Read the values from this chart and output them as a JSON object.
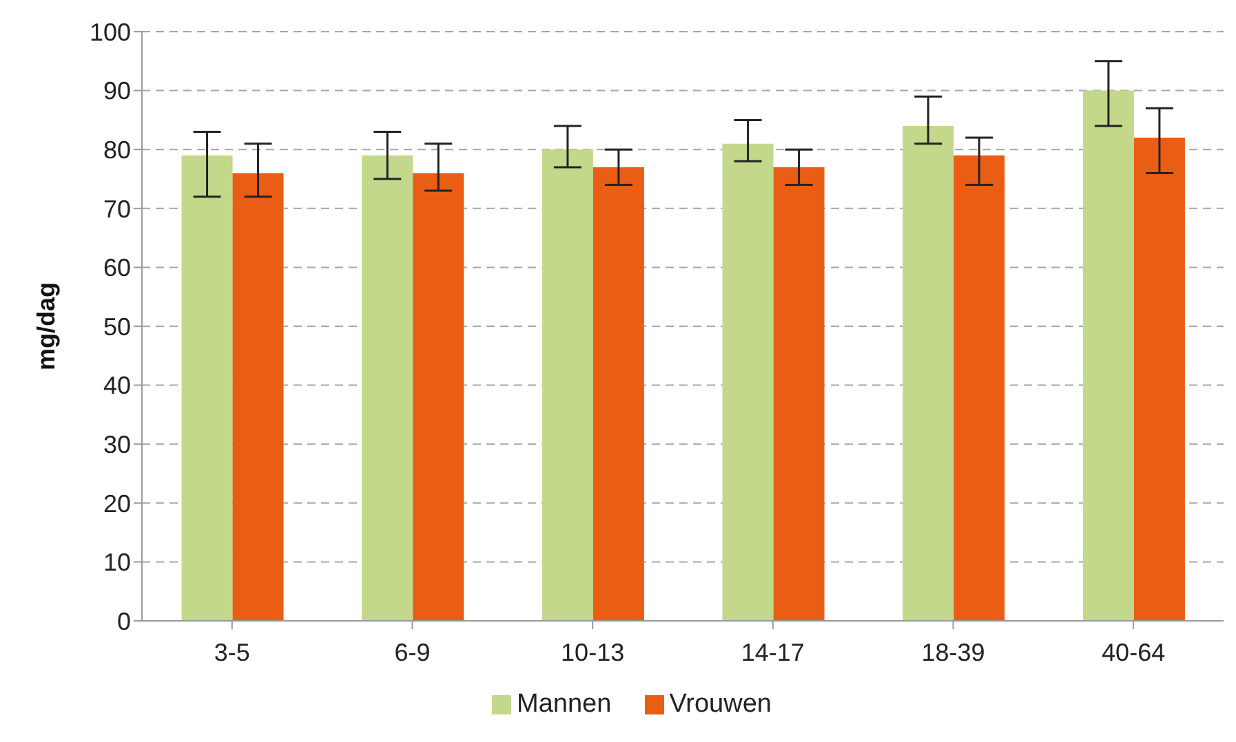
{
  "chart_data": {
    "type": "bar",
    "ylabel": "mg/dag",
    "categories": [
      "3-5",
      "6-9",
      "10-13",
      "14-17",
      "18-39",
      "40-64"
    ],
    "series": [
      {
        "name": "Mannen",
        "color": "#c3d88a",
        "values": [
          79,
          79,
          80,
          81,
          84,
          90
        ],
        "errors": [
          [
            72,
            83
          ],
          [
            75,
            83
          ],
          [
            77,
            84
          ],
          [
            78,
            85
          ],
          [
            81,
            89
          ],
          [
            84,
            95
          ]
        ]
      },
      {
        "name": "Vrouwen",
        "color": "#e95e14",
        "values": [
          76,
          76,
          77,
          77,
          79,
          82
        ],
        "errors": [
          [
            72,
            81
          ],
          [
            73,
            81
          ],
          [
            74,
            80
          ],
          [
            74,
            80
          ],
          [
            74,
            82
          ],
          [
            76,
            87
          ]
        ]
      }
    ],
    "ylim": [
      0,
      100
    ],
    "yticks": [
      0,
      10,
      20,
      30,
      40,
      50,
      60,
      70,
      80,
      90,
      100
    ],
    "grid": "y",
    "legend": "bottom"
  }
}
